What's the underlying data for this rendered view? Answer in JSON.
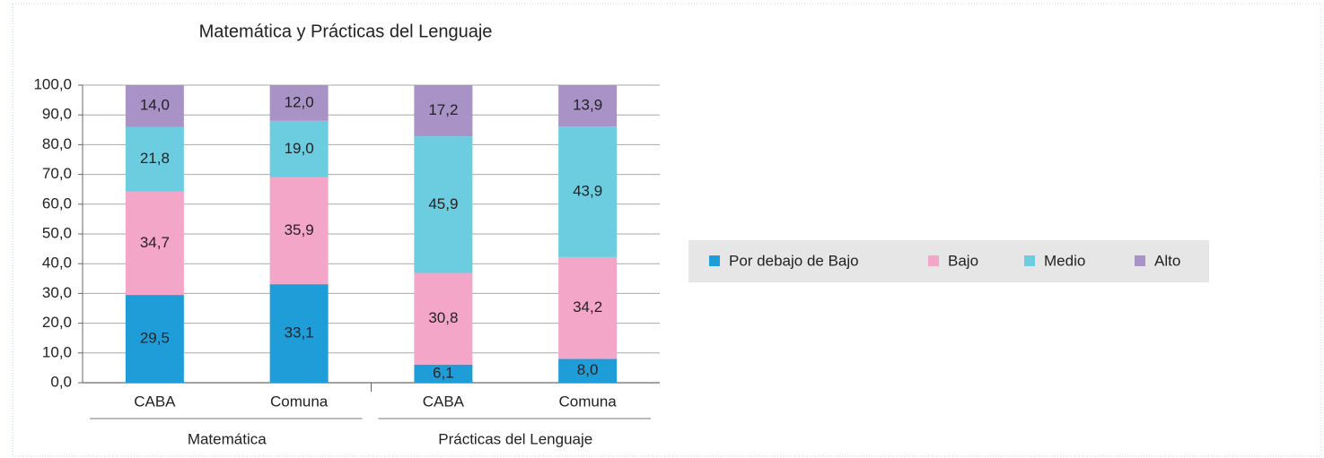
{
  "chart_data": {
    "type": "stacked_bar",
    "title": "Matemática y Prácticas del Lenguaje",
    "categories": [
      "CABA",
      "Comuna",
      "CABA",
      "Comuna"
    ],
    "groups": [
      "Matemática",
      "Prácticas del Lenguaje"
    ],
    "series": [
      {
        "name": "Por debajo de Bajo",
        "color": "#1f9dd9",
        "values": [
          29.5,
          33.1,
          6.1,
          8.0
        ],
        "value_labels": [
          "29,5",
          "33,1",
          "6,1",
          "8,0"
        ]
      },
      {
        "name": "Bajo",
        "color": "#f4a6c8",
        "values": [
          34.7,
          35.9,
          30.8,
          34.2
        ],
        "value_labels": [
          "34,7",
          "35,9",
          "30,8",
          "34,2"
        ]
      },
      {
        "name": "Medio",
        "color": "#6ccde0",
        "values": [
          21.8,
          19.0,
          45.9,
          43.9
        ],
        "value_labels": [
          "21,8",
          "19,0",
          "45,9",
          "43,9"
        ]
      },
      {
        "name": "Alto",
        "color": "#a992c5",
        "values": [
          14.0,
          12.0,
          17.2,
          13.9
        ],
        "value_labels": [
          "14,0",
          "12,0",
          "17,2",
          "13,9"
        ]
      }
    ],
    "ylim": [
      0,
      100
    ],
    "yticks": [
      {
        "value": 0,
        "label": "0,0"
      },
      {
        "value": 10,
        "label": "10,0"
      },
      {
        "value": 20,
        "label": "20,0"
      },
      {
        "value": 30,
        "label": "30,0"
      },
      {
        "value": 40,
        "label": "40,0"
      },
      {
        "value": 50,
        "label": "50,0"
      },
      {
        "value": 60,
        "label": "60,0"
      },
      {
        "value": 70,
        "label": "70,0"
      },
      {
        "value": 80,
        "label": "80,0"
      },
      {
        "value": 90,
        "label": "90,0"
      },
      {
        "value": 100,
        "label": "100,0"
      }
    ],
    "grid": true,
    "legend": "right"
  }
}
